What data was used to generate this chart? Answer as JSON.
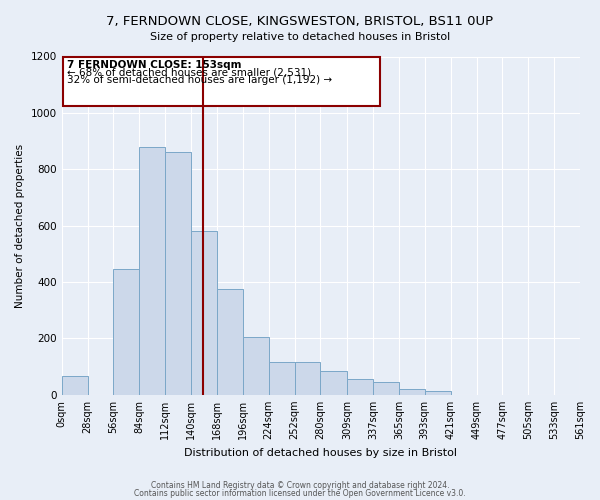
{
  "title": "7, FERNDOWN CLOSE, KINGSWESTON, BRISTOL, BS11 0UP",
  "subtitle": "Size of property relative to detached houses in Bristol",
  "xlabel": "Distribution of detached houses by size in Bristol",
  "ylabel": "Number of detached properties",
  "bar_edges": [
    0,
    28,
    56,
    84,
    112,
    140,
    168,
    196,
    224,
    252,
    280,
    309,
    337,
    365,
    393,
    421,
    449,
    477,
    505,
    533,
    561
  ],
  "bar_heights": [
    65,
    0,
    445,
    880,
    860,
    580,
    375,
    205,
    115,
    115,
    85,
    55,
    45,
    20,
    15,
    0,
    0,
    0,
    0,
    0
  ],
  "bar_facecolor": "#ccd8ea",
  "bar_edgecolor": "#7ba7c8",
  "vline_x": 153,
  "vline_color": "#8b0000",
  "annotation_title": "7 FERNDOWN CLOSE: 153sqm",
  "annotation_line1": "← 68% of detached houses are smaller (2,531)",
  "annotation_line2": "32% of semi-detached houses are larger (1,192) →",
  "annotation_box_edgecolor": "#8b0000",
  "annotation_box_facecolor": "#ffffff",
  "tick_labels": [
    "0sqm",
    "28sqm",
    "56sqm",
    "84sqm",
    "112sqm",
    "140sqm",
    "168sqm",
    "196sqm",
    "224sqm",
    "252sqm",
    "280sqm",
    "309sqm",
    "337sqm",
    "365sqm",
    "393sqm",
    "421sqm",
    "449sqm",
    "477sqm",
    "505sqm",
    "533sqm",
    "561sqm"
  ],
  "ylim": [
    0,
    1200
  ],
  "yticks": [
    0,
    200,
    400,
    600,
    800,
    1000,
    1200
  ],
  "footer_line1": "Contains HM Land Registry data © Crown copyright and database right 2024.",
  "footer_line2": "Contains public sector information licensed under the Open Government Licence v3.0.",
  "background_color": "#e8eef7",
  "plot_background_color": "#e8eef7",
  "grid_color": "#ffffff",
  "figsize": [
    6.0,
    5.0
  ],
  "dpi": 100
}
